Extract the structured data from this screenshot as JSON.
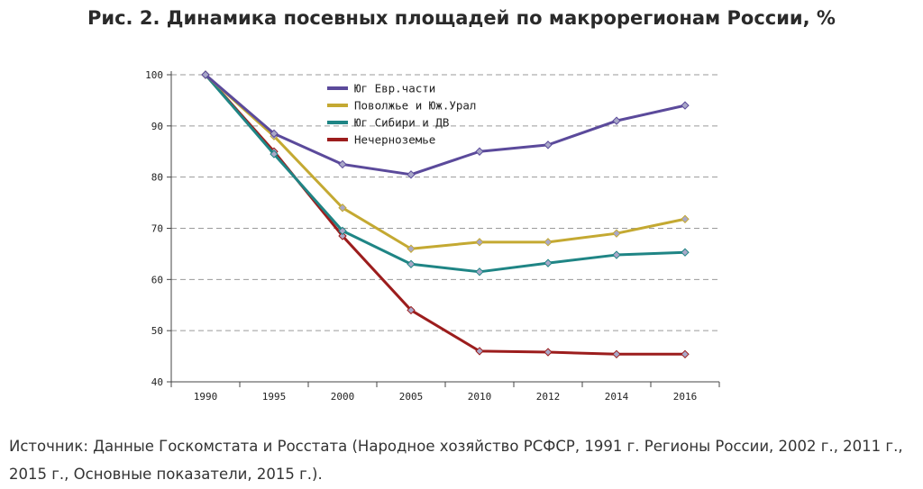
{
  "title": "Рис. 2. Динамика посевных площадей по макрорегионам России, %",
  "source_text": "Источник: Данные Госкомстата и Росстата (Народное хозяйство РСФСР, 1991 г. Регионы России, 2002 г., 2011 г., 2015 г., Основные показатели, 2015 г.).",
  "chart_data": {
    "type": "line",
    "title": "",
    "xlabel": "",
    "ylabel": "",
    "x": [
      "1990",
      "1995",
      "2000",
      "2005",
      "2010",
      "2012",
      "2014",
      "2016"
    ],
    "ylim": [
      40,
      100
    ],
    "yticks": [
      40,
      50,
      60,
      70,
      80,
      90,
      100
    ],
    "grid": "horizontal dashed",
    "legend_position": "top-left",
    "series": [
      {
        "name": "Юг Евр.части",
        "color": "#5b4a9b",
        "values": [
          100,
          88.5,
          82.5,
          80.5,
          85,
          86.3,
          91,
          94
        ]
      },
      {
        "name": "Поволжье и Юж.Урал",
        "color": "#c4a932",
        "values": [
          100,
          88,
          74,
          66,
          67.3,
          67.3,
          69,
          71.8
        ]
      },
      {
        "name": "Юг Сибири и ДВ",
        "color": "#1f8585",
        "values": [
          100,
          84.5,
          69.5,
          63,
          61.5,
          63.2,
          64.8,
          65.3
        ]
      },
      {
        "name": "Нечерноземье",
        "color": "#9c1d1d",
        "values": [
          100,
          85,
          68.5,
          54,
          46,
          45.8,
          45.4,
          45.4
        ]
      }
    ]
  }
}
